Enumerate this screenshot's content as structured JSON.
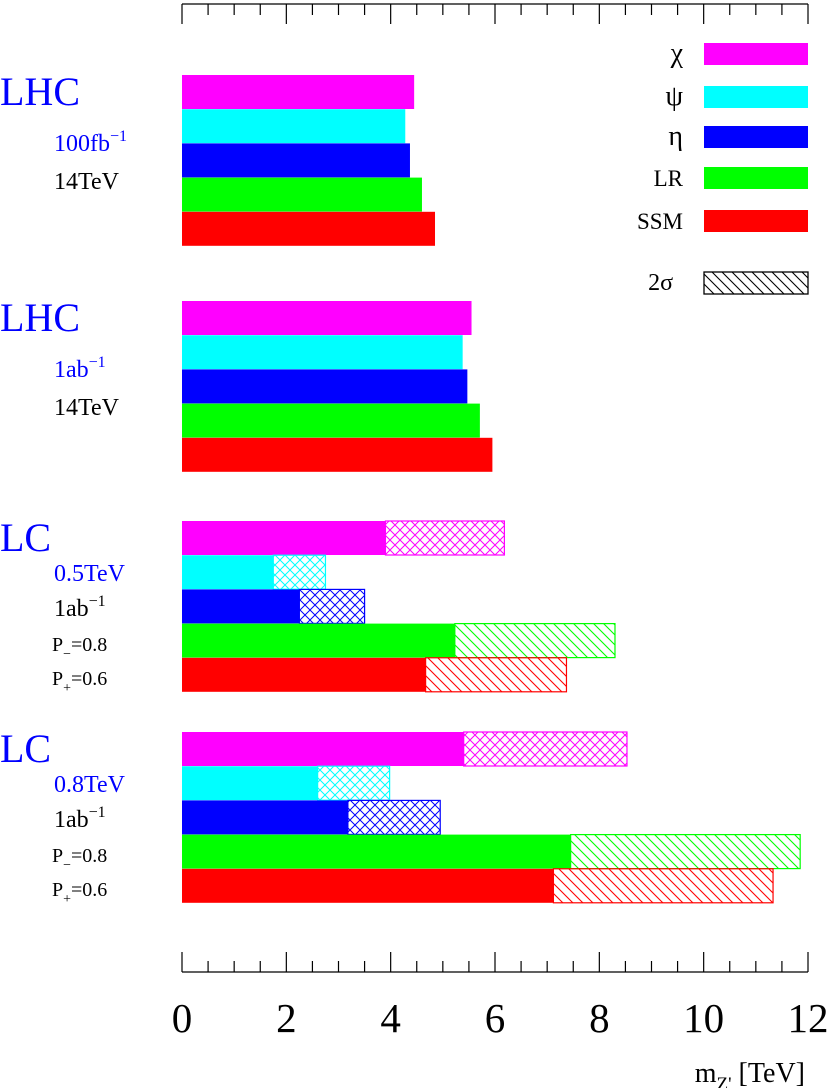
{
  "chart_data": {
    "type": "bar",
    "orientation": "horizontal",
    "title": "",
    "xlabel": "m",
    "xlabel_sub": "Z'",
    "xlabel_unit": " [TeV]",
    "xlim": [
      0,
      12
    ],
    "xticks": [
      "0",
      "2",
      "4",
      "6",
      "8",
      "10",
      "12"
    ],
    "legend": {
      "placement": "top-right",
      "entries": [
        {
          "label": "χ",
          "color": "#ff00ff"
        },
        {
          "label": "ψ",
          "color": "#00ffff"
        },
        {
          "label": "η",
          "color": "#0000ff"
        },
        {
          "label": "LR",
          "color": "#00ff00"
        },
        {
          "label": "SSM",
          "color": "#ff0000"
        }
      ],
      "hatch_label": "2σ"
    },
    "models": [
      "χ",
      "ψ",
      "η",
      "LR",
      "SSM"
    ],
    "groups": [
      {
        "title": "LHC",
        "lines": [
          {
            "text": "100fb",
            "sup": "−1",
            "color": "#0000ff"
          },
          {
            "text": "14TeV",
            "color": "#000000"
          }
        ],
        "values": [
          4.45,
          4.28,
          4.37,
          4.6,
          4.85
        ],
        "hatch_values": [
          null,
          null,
          null,
          null,
          null
        ]
      },
      {
        "title": "LHC",
        "lines": [
          {
            "text": "1ab",
            "sup": "−1",
            "color": "#0000ff"
          },
          {
            "text": "14TeV",
            "color": "#000000"
          }
        ],
        "values": [
          5.55,
          5.38,
          5.47,
          5.71,
          5.95
        ],
        "hatch_values": [
          null,
          null,
          null,
          null,
          null
        ]
      },
      {
        "title": "LC",
        "lines": [
          {
            "text": "0.5TeV",
            "color": "#0000ff"
          },
          {
            "text": "1ab",
            "sup": "−1",
            "color": "#000000"
          },
          {
            "text": "P",
            "sub": "−",
            "rest": "=0.8",
            "color": "#000000"
          },
          {
            "text": "P",
            "sub": "+",
            "rest": "=0.6",
            "color": "#000000"
          }
        ],
        "values": [
          3.9,
          1.75,
          2.25,
          5.23,
          4.67
        ],
        "hatch_values": [
          6.18,
          2.75,
          3.5,
          8.3,
          7.37
        ]
      },
      {
        "title": "LC",
        "lines": [
          {
            "text": "0.8TeV",
            "color": "#0000ff"
          },
          {
            "text": "1ab",
            "sup": "−1",
            "color": "#000000"
          },
          {
            "text": "P",
            "sub": "−",
            "rest": "=0.8",
            "color": "#000000"
          },
          {
            "text": "P",
            "sub": "+",
            "rest": "=0.6",
            "color": "#000000"
          }
        ],
        "values": [
          5.4,
          2.6,
          3.18,
          7.45,
          7.12
        ],
        "hatch_values": [
          8.53,
          3.98,
          4.95,
          11.85,
          11.33
        ]
      }
    ]
  }
}
